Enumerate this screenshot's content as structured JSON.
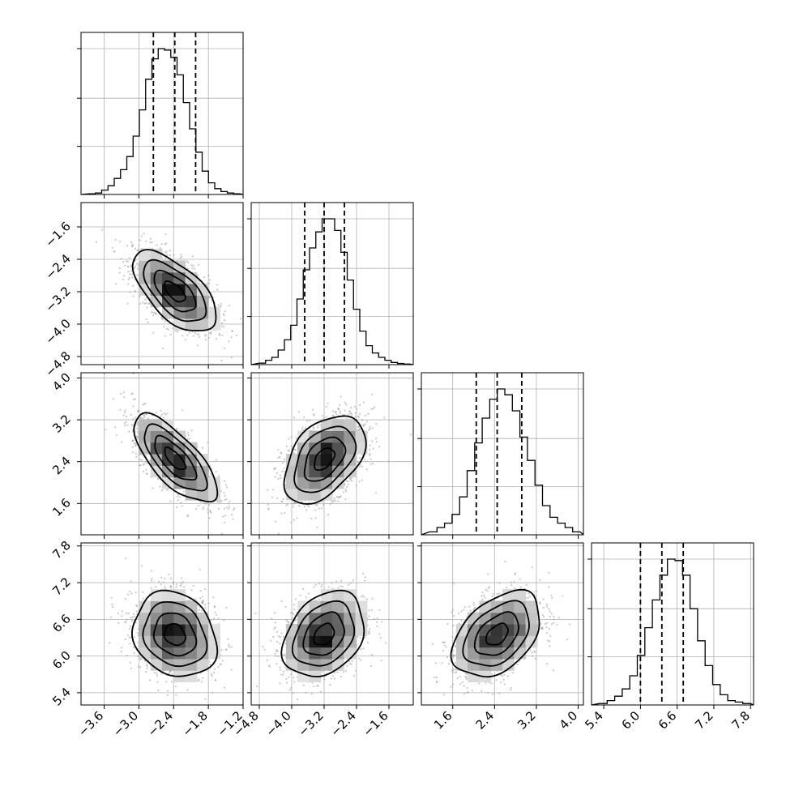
{
  "chart_data": {
    "type": "corner",
    "n_params": 4,
    "parameters": [
      {
        "index": 0,
        "range": [
          -4.0,
          -1.2
        ],
        "ticks": [
          "−3.6",
          "−3.0",
          "−2.4",
          "−1.8",
          "−1.2"
        ],
        "tick_values": [
          -3.6,
          -3.0,
          -2.4,
          -1.8,
          -1.2
        ],
        "quantiles": [
          -2.75,
          -2.38,
          -2.02
        ]
      },
      {
        "index": 1,
        "range": [
          -5.0,
          -1.0
        ],
        "ticks": [
          "−4.8",
          "−4.0",
          "−3.2",
          "−2.4",
          "−1.6"
        ],
        "tick_values": [
          -4.8,
          -4.0,
          -3.2,
          -2.4,
          -1.6
        ],
        "quantiles": [
          -3.68,
          -3.2,
          -2.7
        ]
      },
      {
        "index": 2,
        "range": [
          1.0,
          4.1
        ],
        "ticks": [
          "1.6",
          "2.4",
          "3.2",
          "4.0"
        ],
        "tick_values": [
          1.6,
          2.4,
          3.2,
          4.0
        ],
        "quantiles": [
          2.05,
          2.45,
          2.92
        ]
      },
      {
        "index": 3,
        "range": [
          5.2,
          7.85
        ],
        "ticks": [
          "5.4",
          "6.0",
          "6.6",
          "7.2",
          "7.8"
        ],
        "tick_values": [
          5.4,
          6.0,
          6.6,
          7.2,
          7.8
        ],
        "quantiles": [
          6.0,
          6.35,
          6.7
        ]
      }
    ],
    "histograms": [
      [
        0.005,
        0.01,
        0.03,
        0.06,
        0.11,
        0.17,
        0.26,
        0.4,
        0.58,
        0.79,
        0.93,
        1.0,
        0.99,
        0.94,
        0.82,
        0.63,
        0.45,
        0.29,
        0.16,
        0.08,
        0.04,
        0.02,
        0.01,
        0.005
      ],
      [
        0.01,
        0.03,
        0.05,
        0.1,
        0.17,
        0.27,
        0.45,
        0.65,
        0.8,
        0.91,
        1.0,
        1.0,
        0.92,
        0.77,
        0.58,
        0.38,
        0.23,
        0.13,
        0.08,
        0.05,
        0.03,
        0.015,
        0.008,
        0.004
      ],
      [
        0.02,
        0.05,
        0.08,
        0.14,
        0.26,
        0.44,
        0.63,
        0.8,
        0.93,
        1.0,
        0.96,
        0.85,
        0.67,
        0.51,
        0.34,
        0.2,
        0.12,
        0.08,
        0.05,
        0.02
      ],
      [
        0.01,
        0.03,
        0.06,
        0.11,
        0.2,
        0.34,
        0.53,
        0.72,
        0.89,
        1.0,
        0.99,
        0.89,
        0.66,
        0.44,
        0.27,
        0.14,
        0.07,
        0.03,
        0.02,
        0.01
      ]
    ],
    "pairs": [
      {
        "x": 0,
        "y": 1,
        "mean": [
          -2.38,
          -3.2
        ],
        "sd": [
          0.36,
          0.5
        ],
        "rho": -0.62
      },
      {
        "x": 0,
        "y": 2,
        "mean": [
          -2.38,
          2.45
        ],
        "sd": [
          0.36,
          0.42
        ],
        "rho": -0.72
      },
      {
        "x": 1,
        "y": 2,
        "mean": [
          -3.2,
          2.45
        ],
        "sd": [
          0.5,
          0.42
        ],
        "rho": 0.45
      },
      {
        "x": 0,
        "y": 3,
        "mean": [
          -2.38,
          6.35
        ],
        "sd": [
          0.36,
          0.35
        ],
        "rho": -0.18
      },
      {
        "x": 1,
        "y": 3,
        "mean": [
          -3.2,
          6.35
        ],
        "sd": [
          0.5,
          0.35
        ],
        "rho": 0.3
      },
      {
        "x": 2,
        "y": 3,
        "mean": [
          2.45,
          6.35
        ],
        "sd": [
          0.42,
          0.35
        ],
        "rho": 0.42
      }
    ],
    "contour_levels_sigma": [
      0.5,
      1.0,
      1.5,
      2.0
    ],
    "grid": true,
    "title": "",
    "legend": "none"
  }
}
